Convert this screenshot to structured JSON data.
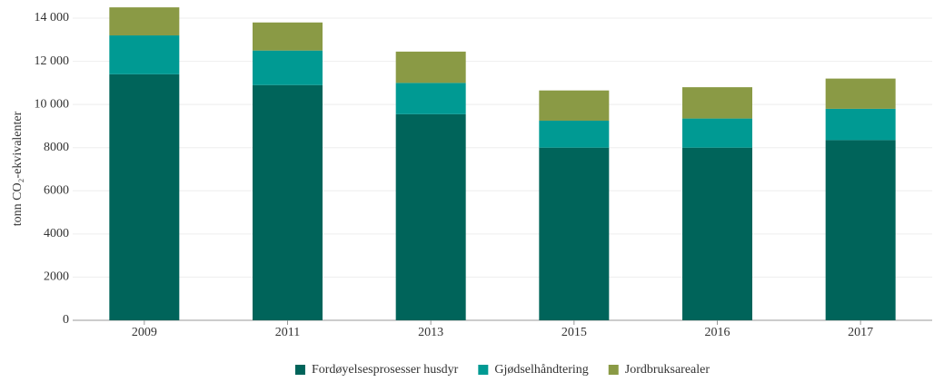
{
  "chart_data": {
    "type": "stacked_bar",
    "y_label": "tonn CO₂-ekvivalenter",
    "categories": [
      "2009",
      "2011",
      "2013",
      "2015",
      "2016",
      "2017"
    ],
    "series": [
      {
        "name": "Fordøyelsesprosesser husdyr",
        "color": "#00645a",
        "values": [
          11400,
          10900,
          9550,
          8000,
          8000,
          8350
        ]
      },
      {
        "name": "Gjødselhåndtering",
        "color": "#009a93",
        "values": [
          1800,
          1600,
          1450,
          1250,
          1350,
          1450
        ]
      },
      {
        "name": "Jordbruksarealer",
        "color": "#8a9a45",
        "values": [
          1300,
          1300,
          1450,
          1400,
          1450,
          1400
        ]
      }
    ],
    "ylim": [
      0,
      14000
    ],
    "yticks": [
      0,
      2000,
      4000,
      6000,
      8000,
      {
        "value": 10000,
        "label": "10 000"
      },
      {
        "value": 12000,
        "label": "12 000"
      },
      {
        "value": 14000,
        "label": "14 000"
      }
    ],
    "grid": true
  }
}
